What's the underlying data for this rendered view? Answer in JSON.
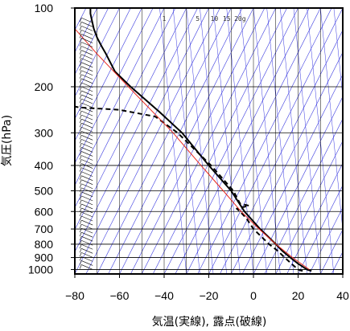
{
  "chart_data": {
    "type": "line",
    "title": "",
    "xlabel": "気温(実線), 露点(破線)",
    "ylabel": "気圧(hPa)",
    "xlim": [
      -80,
      40
    ],
    "ylim": [
      1040,
      100
    ],
    "y_scale": "log",
    "x_ticks": [
      -80,
      -60,
      -40,
      -20,
      0,
      20,
      40
    ],
    "x_tick_labels": [
      "−80",
      "−60",
      "−40",
      "−20",
      "0",
      "20",
      "40"
    ],
    "y_ticks": [
      100,
      200,
      300,
      400,
      500,
      600,
      700,
      800,
      900,
      1000
    ],
    "y_tick_labels": [
      "100",
      "200",
      "300",
      "400",
      "500",
      "600",
      "700",
      "800",
      "900",
      "1000"
    ],
    "mixing_ratio_labels": [
      "1",
      "5",
      "10",
      "15",
      "20g"
    ],
    "colors": {
      "isotherm": "#3a3ae0",
      "parcel": "#e8281f",
      "temperature": "#000000",
      "dewpoint": "#000000",
      "grid": "#000000"
    },
    "series": [
      {
        "style": "solid-black",
        "p": [
          1013,
          1000,
          950,
          900,
          850,
          800,
          700,
          600,
          500,
          400,
          300,
          250,
          200,
          175,
          150,
          140,
          130,
          120,
          110,
          105,
          100
        ],
        "t": [
          26,
          24,
          20,
          16.5,
          13,
          10,
          3,
          -4,
          -10,
          -20,
          -32,
          -42,
          -55,
          -62,
          -66,
          -68,
          -70,
          -71.5,
          -72.5,
          -73,
          -73
        ]
      },
      {
        "style": "dashed-black",
        "p": [
          1013,
          1000,
          950,
          900,
          850,
          800,
          700,
          640,
          600,
          585,
          570,
          560,
          500,
          400,
          300,
          260,
          245,
          240,
          238
        ],
        "td": [
          22,
          20,
          17,
          14,
          11,
          7,
          0,
          -3,
          -6,
          -7.5,
          -2,
          -6,
          -9,
          -19,
          -34,
          -44,
          -60,
          -78,
          -80
        ]
      },
      {
        "style": "solid-red",
        "p": [
          1000,
          900,
          800,
          700,
          600,
          500,
          400,
          300,
          200,
          150,
          120
        ],
        "t": [
          25,
          17.5,
          10,
          2.5,
          -5.5,
          -13.5,
          -23.5,
          -36,
          -56,
          -70,
          -80
        ]
      }
    ],
    "wind_barbs": "wind barbs at left edge near x = -72"
  }
}
